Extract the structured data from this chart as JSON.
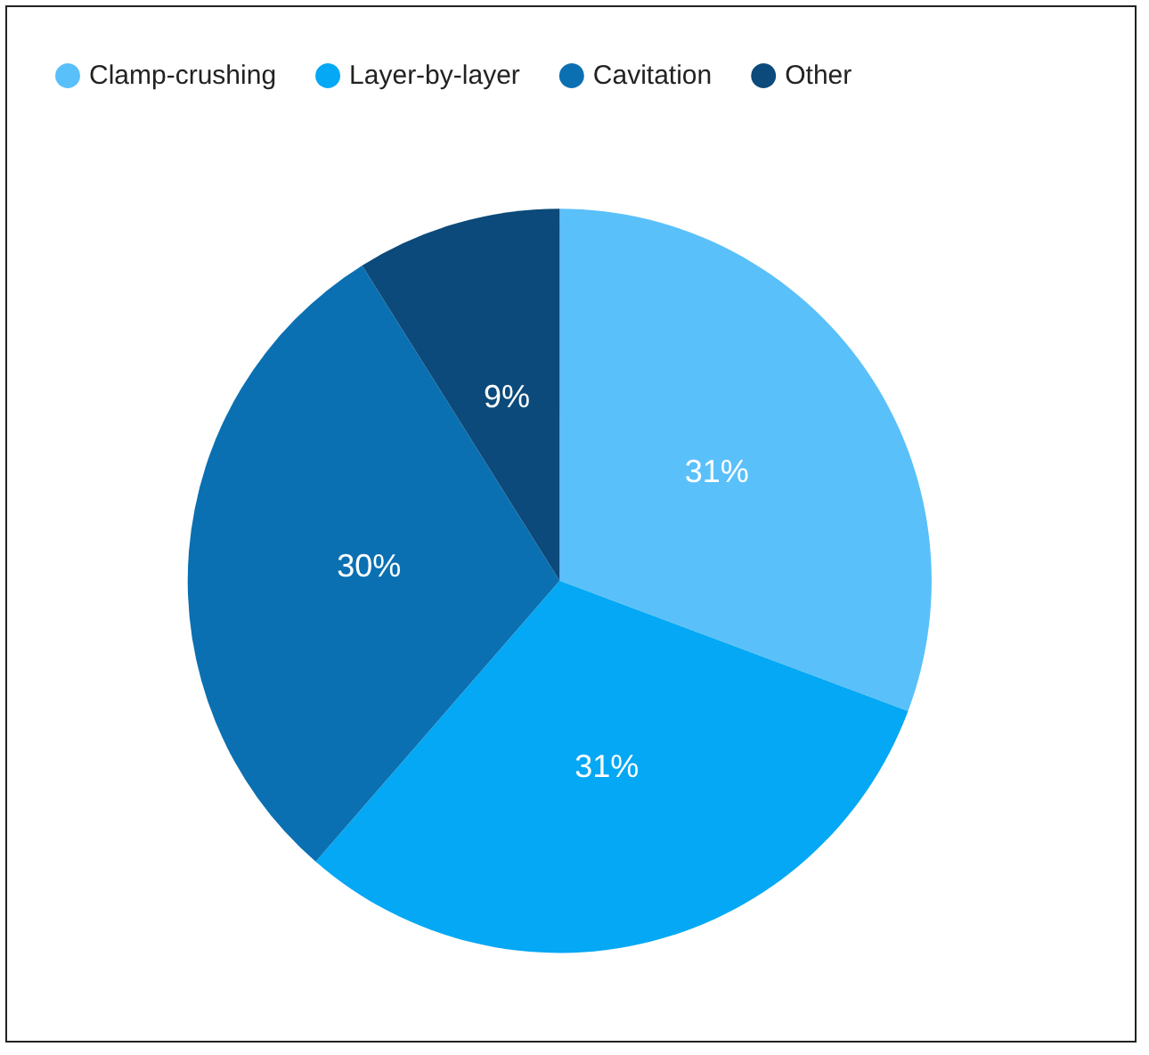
{
  "chart_data": {
    "type": "pie",
    "categories": [
      "Clamp-crushing",
      "Layer-by-layer",
      "Cavitation",
      "Other"
    ],
    "values": [
      31,
      31,
      30,
      9
    ],
    "value_labels": [
      "31%",
      "31%",
      "30%",
      "9%"
    ],
    "colors": [
      "#5ac0fa",
      "#04a8f4",
      "#0a70b2",
      "#0b4a7a"
    ],
    "legend": "top left"
  }
}
